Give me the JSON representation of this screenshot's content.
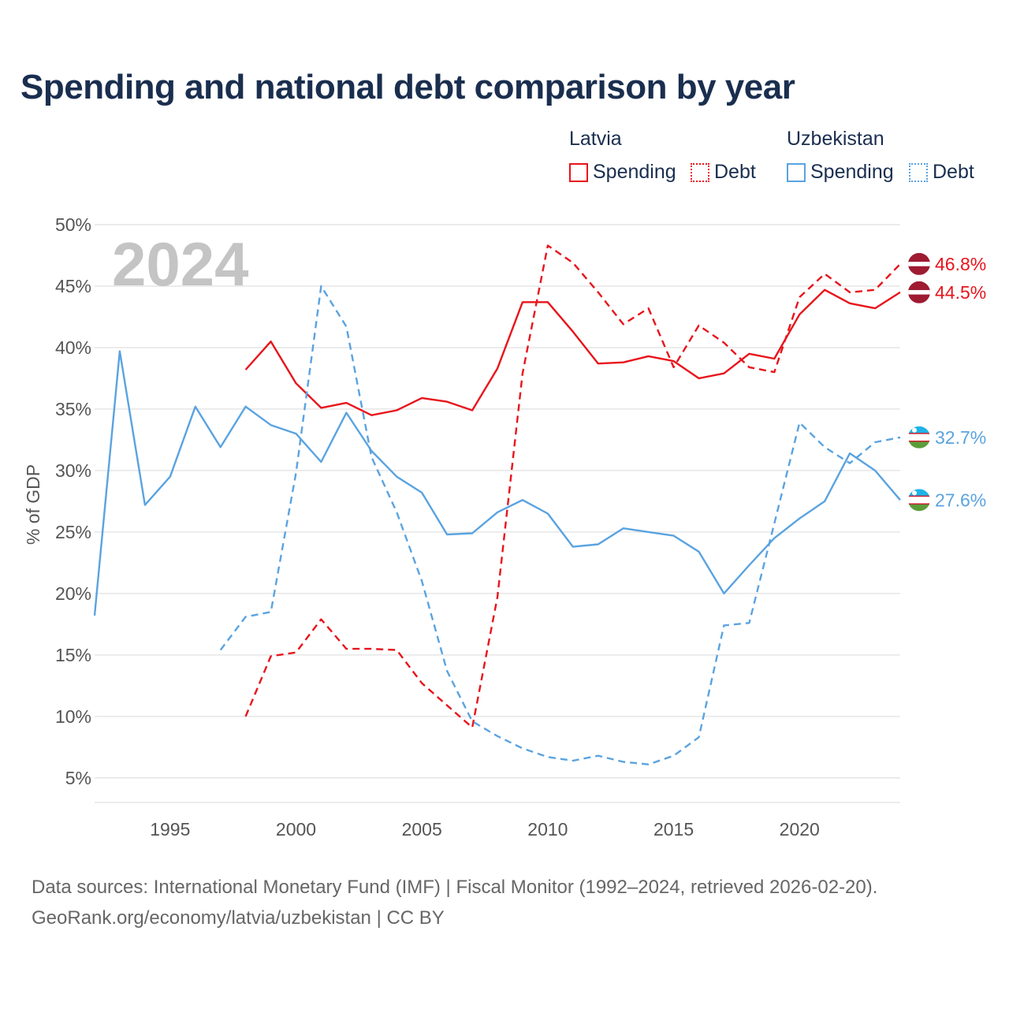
{
  "title": "Spending and national debt comparison by year",
  "legend": {
    "countries": [
      {
        "name": "Latvia",
        "spending_label": "Spending",
        "debt_label": "Debt"
      },
      {
        "name": "Uzbekistan",
        "spending_label": "Spending",
        "debt_label": "Debt"
      }
    ]
  },
  "colors": {
    "latvia": "#e8141c",
    "uzbekistan": "#5aa3e0",
    "grid": "#e6e6e6"
  },
  "source": {
    "line1": "Data sources: International Monetary Fund (IMF) | Fiscal Monitor (1992–2024, retrieved 2026-02-20).",
    "line2": "GeoRank.org/economy/latvia/uzbekistan | CC BY"
  },
  "chart_data": {
    "type": "line",
    "year_label": "2024",
    "ylabel": "% of GDP",
    "xlim": [
      1992,
      2024
    ],
    "ylim": [
      3,
      50
    ],
    "x_ticks": [
      1995,
      2000,
      2005,
      2010,
      2015,
      2020
    ],
    "x_tick_labels": [
      "1995",
      "2000",
      "2005",
      "2010",
      "2015",
      "2020"
    ],
    "y_ticks": [
      5,
      10,
      15,
      20,
      25,
      30,
      35,
      40,
      45,
      50
    ],
    "y_tick_labels": [
      "5%",
      "10%",
      "15%",
      "20%",
      "25%",
      "30%",
      "35%",
      "40%",
      "45%",
      "50%"
    ],
    "series": [
      {
        "name": "Latvia Spending",
        "country": "latvia",
        "style": "solid",
        "end_label": "44.5%",
        "flag": "latvia-flag",
        "x": [
          1998,
          1999,
          2000,
          2001,
          2002,
          2003,
          2004,
          2005,
          2006,
          2007,
          2008,
          2009,
          2010,
          2011,
          2012,
          2013,
          2014,
          2015,
          2016,
          2017,
          2018,
          2019,
          2020,
          2021,
          2022,
          2023,
          2024
        ],
        "y": [
          38.2,
          40.5,
          37.1,
          35.1,
          35.5,
          34.5,
          34.9,
          35.9,
          35.6,
          34.9,
          38.3,
          43.7,
          43.7,
          41.3,
          38.7,
          38.8,
          39.3,
          38.9,
          37.5,
          37.9,
          39.5,
          39.1,
          42.7,
          44.7,
          43.6,
          43.2,
          44.5
        ]
      },
      {
        "name": "Latvia Debt",
        "country": "latvia",
        "style": "dashed",
        "end_label": "46.8%",
        "flag": "latvia-flag",
        "x": [
          1998,
          1999,
          2000,
          2001,
          2002,
          2003,
          2004,
          2005,
          2006,
          2007,
          2008,
          2009,
          2010,
          2011,
          2012,
          2013,
          2014,
          2015,
          2016,
          2017,
          2018,
          2019,
          2020,
          2021,
          2022,
          2023,
          2024
        ],
        "y": [
          10.0,
          14.9,
          15.2,
          17.9,
          15.5,
          15.5,
          15.4,
          12.7,
          10.9,
          9.1,
          19.7,
          37.9,
          48.3,
          46.9,
          44.5,
          41.9,
          43.2,
          38.4,
          41.8,
          40.4,
          38.4,
          38.0,
          44.1,
          46.0,
          44.5,
          44.7,
          46.8
        ]
      },
      {
        "name": "Uzbekistan Spending",
        "country": "uzbekistan",
        "style": "solid",
        "end_label": "27.6%",
        "flag": "uzbekistan-flag",
        "x": [
          1992,
          1993,
          1994,
          1995,
          1996,
          1997,
          1998,
          1999,
          2000,
          2001,
          2002,
          2003,
          2004,
          2005,
          2006,
          2007,
          2008,
          2009,
          2010,
          2011,
          2012,
          2013,
          2014,
          2015,
          2016,
          2017,
          2018,
          2019,
          2020,
          2021,
          2022,
          2023,
          2024
        ],
        "y": [
          18.2,
          39.7,
          27.2,
          29.5,
          35.2,
          31.9,
          35.2,
          33.7,
          33.0,
          30.7,
          34.7,
          31.6,
          29.5,
          28.2,
          24.8,
          24.9,
          26.6,
          27.6,
          26.5,
          23.8,
          24.0,
          25.3,
          25.0,
          24.7,
          23.4,
          20.0,
          22.3,
          24.5,
          26.1,
          27.5,
          31.4,
          30.0,
          27.6
        ]
      },
      {
        "name": "Uzbekistan Debt",
        "country": "uzbekistan",
        "style": "dashed",
        "end_label": "32.7%",
        "flag": "uzbekistan-flag",
        "x": [
          1997,
          1998,
          1999,
          2000,
          2001,
          2002,
          2003,
          2004,
          2005,
          2006,
          2007,
          2008,
          2009,
          2010,
          2011,
          2012,
          2013,
          2014,
          2015,
          2016,
          2017,
          2018,
          2019,
          2020,
          2021,
          2022,
          2023,
          2024
        ],
        "y": [
          15.4,
          18.1,
          18.5,
          29.8,
          45.0,
          41.7,
          31.1,
          26.6,
          21.0,
          13.7,
          9.6,
          8.4,
          7.4,
          6.7,
          6.4,
          6.8,
          6.3,
          6.1,
          6.8,
          8.3,
          17.4,
          17.6,
          25.7,
          33.9,
          31.9,
          30.6,
          32.3,
          32.7
        ]
      }
    ]
  }
}
